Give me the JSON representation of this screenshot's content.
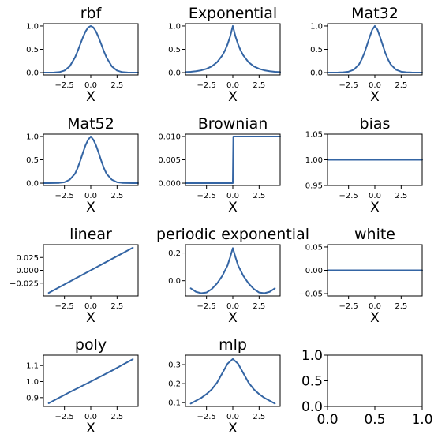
{
  "colors": {
    "line": "#3465a4",
    "axis": "#000000",
    "background": "#ffffff"
  },
  "chart_data": [
    {
      "type": "line",
      "title": "rbf",
      "xlabel": "X",
      "xlim": [
        -4.5,
        4.5
      ],
      "ylim": [
        -0.05,
        1.05
      ],
      "xticks": [
        -2.5,
        0,
        2.5
      ],
      "xtick_labels": [
        "−2.5",
        "0.0",
        "2.5"
      ],
      "yticks": [
        0,
        0.5,
        1
      ],
      "ytick_labels": [
        "0.0",
        "0.5",
        "1.0"
      ],
      "x": [
        -4.5,
        -4,
        -3.5,
        -3,
        -2.5,
        -2,
        -1.5,
        -1.25,
        -1,
        -0.75,
        -0.5,
        -0.25,
        0,
        0.25,
        0.5,
        0.75,
        1,
        1.25,
        1.5,
        2,
        2.5,
        3,
        3.5,
        4,
        4.5
      ],
      "y": [
        0.0,
        0.0,
        0.002,
        0.011,
        0.044,
        0.135,
        0.325,
        0.458,
        0.607,
        0.755,
        0.882,
        0.969,
        1.0,
        0.969,
        0.882,
        0.755,
        0.607,
        0.458,
        0.325,
        0.135,
        0.044,
        0.011,
        0.002,
        0.0,
        0.0
      ]
    },
    {
      "type": "line",
      "title": "Exponential",
      "xlabel": "X",
      "xlim": [
        -4.5,
        4.5
      ],
      "ylim": [
        -0.05,
        1.05
      ],
      "xticks": [
        -2.5,
        0,
        2.5
      ],
      "xtick_labels": [
        "−2.5",
        "0.0",
        "2.5"
      ],
      "yticks": [
        0,
        0.5,
        1
      ],
      "ytick_labels": [
        "0.0",
        "0.5",
        "1.0"
      ],
      "x": [
        -4.5,
        -4,
        -3.5,
        -3,
        -2.5,
        -2,
        -1.5,
        -1,
        -0.75,
        -0.5,
        -0.25,
        0,
        0.25,
        0.5,
        0.75,
        1,
        1.5,
        2,
        2.5,
        3,
        3.5,
        4,
        4.5
      ],
      "y": [
        0.011,
        0.018,
        0.03,
        0.05,
        0.082,
        0.135,
        0.223,
        0.368,
        0.472,
        0.607,
        0.779,
        1.0,
        0.779,
        0.607,
        0.472,
        0.368,
        0.223,
        0.135,
        0.082,
        0.05,
        0.03,
        0.018,
        0.011
      ]
    },
    {
      "type": "line",
      "title": "Mat32",
      "xlabel": "X",
      "xlim": [
        -4.5,
        4.5
      ],
      "ylim": [
        -0.05,
        1.05
      ],
      "xticks": [
        -2.5,
        0,
        2.5
      ],
      "xtick_labels": [
        "−2.5",
        "0.0",
        "2.5"
      ],
      "yticks": [
        0,
        0.5,
        1
      ],
      "ytick_labels": [
        "0.0",
        "0.5",
        "1.0"
      ],
      "x": [
        -4.5,
        -4,
        -3.5,
        -3,
        -2.5,
        -2,
        -1.5,
        -1.25,
        -1,
        -0.75,
        -0.5,
        -0.25,
        0,
        0.25,
        0.5,
        0.75,
        1,
        1.25,
        1.5,
        2,
        2.5,
        3,
        3.5,
        4,
        4.5
      ],
      "y": [
        0.0,
        0.001,
        0.003,
        0.008,
        0.02,
        0.063,
        0.179,
        0.285,
        0.42,
        0.587,
        0.761,
        0.92,
        1.0,
        0.92,
        0.761,
        0.587,
        0.42,
        0.285,
        0.179,
        0.063,
        0.02,
        0.008,
        0.003,
        0.001,
        0.0
      ]
    },
    {
      "type": "line",
      "title": "Mat52",
      "xlabel": "X",
      "xlim": [
        -4.5,
        4.5
      ],
      "ylim": [
        -0.05,
        1.05
      ],
      "xticks": [
        -2.5,
        0,
        2.5
      ],
      "xtick_labels": [
        "−2.5",
        "0.0",
        "2.5"
      ],
      "yticks": [
        0,
        0.5,
        1
      ],
      "ytick_labels": [
        "0.0",
        "0.5",
        "1.0"
      ],
      "x": [
        -4.5,
        -4,
        -3.5,
        -3,
        -2.5,
        -2,
        -1.5,
        -1.25,
        -1,
        -0.75,
        -0.5,
        -0.25,
        0,
        0.25,
        0.5,
        0.75,
        1,
        1.25,
        1.5,
        2,
        2.5,
        3,
        3.5,
        4,
        4.5
      ],
      "y": [
        0.0,
        0.001,
        0.002,
        0.006,
        0.02,
        0.075,
        0.2,
        0.324,
        0.478,
        0.65,
        0.81,
        0.93,
        1.0,
        0.93,
        0.81,
        0.65,
        0.478,
        0.324,
        0.2,
        0.075,
        0.02,
        0.006,
        0.002,
        0.001,
        0.0
      ]
    },
    {
      "type": "line",
      "title": "Brownian",
      "xlabel": "X",
      "xlim": [
        -4.5,
        4.5
      ],
      "ylim": [
        -0.0005,
        0.0105
      ],
      "xticks": [
        -2.5,
        0,
        2.5
      ],
      "xtick_labels": [
        "−2.5",
        "0.0",
        "2.5"
      ],
      "yticks": [
        0,
        0.005,
        0.01
      ],
      "ytick_labels": [
        "0.000",
        "0.005",
        "0.010"
      ],
      "x": [
        -4.5,
        -0.05,
        0.0,
        0.05,
        4.5
      ],
      "y": [
        0.0,
        0.0,
        0.0,
        0.01,
        0.01
      ]
    },
    {
      "type": "line",
      "title": "bias",
      "xlabel": "X",
      "xlim": [
        -4.5,
        4.5
      ],
      "ylim": [
        0.95,
        1.05
      ],
      "xticks": [
        -2.5,
        0,
        2.5
      ],
      "xtick_labels": [
        "−2.5",
        "0.0",
        "2.5"
      ],
      "yticks": [
        0.95,
        1.0,
        1.05
      ],
      "ytick_labels": [
        "0.95",
        "1.00",
        "1.05"
      ],
      "x": [
        -4.5,
        4.5
      ],
      "y": [
        1.0,
        1.0
      ]
    },
    {
      "type": "line",
      "title": "linear",
      "xlabel": "X",
      "xlim": [
        -4.5,
        4.5
      ],
      "ylim": [
        -0.05,
        0.05
      ],
      "xticks": [
        -2.5,
        0,
        2.5
      ],
      "xtick_labels": [
        "−2.5",
        "0.0",
        "2.5"
      ],
      "yticks": [
        -0.025,
        0,
        0.025
      ],
      "ytick_labels": [
        "−0.025",
        "0.000",
        "0.025"
      ],
      "x": [
        -4.0,
        4.0
      ],
      "y": [
        -0.044,
        0.044
      ]
    },
    {
      "type": "line",
      "title": "periodic exponential",
      "xlabel": "X",
      "xlim": [
        -4.5,
        4.5
      ],
      "ylim": [
        -0.11,
        0.26
      ],
      "xticks": [
        -2.5,
        0,
        2.5
      ],
      "xtick_labels": [
        "−2.5",
        "0.0",
        "2.5"
      ],
      "yticks": [
        0,
        0.2
      ],
      "ytick_labels": [
        "0.0",
        "0.2"
      ],
      "x": [
        -4.0,
        -3.5,
        -3.0,
        -2.5,
        -2.0,
        -1.5,
        -1.0,
        -0.5,
        -0.25,
        0,
        0.25,
        0.5,
        1.0,
        1.5,
        2.0,
        2.5,
        3.0,
        3.5,
        4.0
      ],
      "y": [
        -0.055,
        -0.08,
        -0.09,
        -0.085,
        -0.06,
        -0.02,
        0.035,
        0.11,
        0.17,
        0.235,
        0.17,
        0.11,
        0.035,
        -0.02,
        -0.06,
        -0.085,
        -0.09,
        -0.08,
        -0.055
      ]
    },
    {
      "type": "line",
      "title": "white",
      "xlabel": "X",
      "xlim": [
        -4.5,
        4.5
      ],
      "ylim": [
        -0.055,
        0.055
      ],
      "xticks": [
        -2.5,
        0,
        2.5
      ],
      "xtick_labels": [
        "−2.5",
        "0.0",
        "2.5"
      ],
      "yticks": [
        -0.05,
        0,
        0.05
      ],
      "ytick_labels": [
        "−0.05",
        "0.00",
        "0.05"
      ],
      "x": [
        -4.5,
        4.5
      ],
      "y": [
        0.0,
        0.0
      ]
    },
    {
      "type": "line",
      "title": "poly",
      "xlabel": "X",
      "xlim": [
        -4.5,
        4.5
      ],
      "ylim": [
        0.845,
        1.165
      ],
      "xticks": [
        -2.5,
        0,
        2.5
      ],
      "xtick_labels": [
        "−2.5",
        "0.0",
        "2.5"
      ],
      "yticks": [
        0.9,
        1.0,
        1.1
      ],
      "ytick_labels": [
        "0.9",
        "1.0",
        "1.1"
      ],
      "x": [
        -4.0,
        -3.0,
        -2.0,
        -1.0,
        0.0,
        1.0,
        2.0,
        3.0,
        4.0
      ],
      "y": [
        0.865,
        0.9,
        0.934,
        0.967,
        1.0,
        1.034,
        1.068,
        1.104,
        1.14
      ]
    },
    {
      "type": "line",
      "title": "mlp",
      "xlabel": "X",
      "xlim": [
        -4.5,
        4.5
      ],
      "ylim": [
        0.08,
        0.35
      ],
      "xticks": [
        -2.5,
        0,
        2.5
      ],
      "xtick_labels": [
        "−2.5",
        "0.0",
        "2.5"
      ],
      "yticks": [
        0.1,
        0.2,
        0.3
      ],
      "ytick_labels": [
        "0.1",
        "0.2",
        "0.3"
      ],
      "x": [
        -4.0,
        -3.5,
        -3.0,
        -2.5,
        -2.0,
        -1.5,
        -1.0,
        -0.5,
        0,
        0.5,
        1.0,
        1.5,
        2.0,
        2.5,
        3.0,
        3.5,
        4.0
      ],
      "y": [
        0.095,
        0.11,
        0.125,
        0.145,
        0.17,
        0.205,
        0.255,
        0.305,
        0.33,
        0.305,
        0.255,
        0.205,
        0.17,
        0.145,
        0.125,
        0.11,
        0.095
      ]
    },
    {
      "type": "line",
      "title": "",
      "xlabel": "",
      "xlim": [
        0,
        1
      ],
      "ylim": [
        0,
        1
      ],
      "xticks": [
        0,
        0.5,
        1
      ],
      "xtick_labels": [
        "0.0",
        "0.5",
        "1.0"
      ],
      "yticks": [
        0,
        0.5,
        1
      ],
      "ytick_labels": [
        "0.0",
        "0.5",
        "1.0"
      ],
      "large_ticks": true,
      "x": [],
      "y": []
    }
  ]
}
